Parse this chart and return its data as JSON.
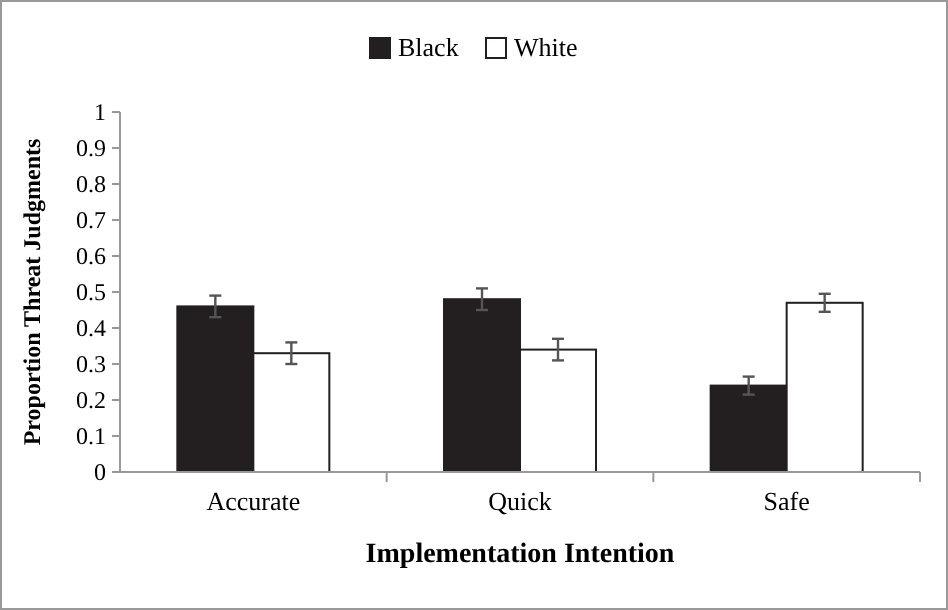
{
  "chart_data": {
    "type": "bar",
    "xlabel": "Implementation Intention",
    "ylabel": "Proportion Threat Judgments",
    "categories": [
      "Accurate",
      "Quick",
      "Safe"
    ],
    "series": [
      {
        "name": "Black",
        "color": "#231f20",
        "values": [
          0.46,
          0.48,
          0.24
        ],
        "errors": [
          0.03,
          0.03,
          0.025
        ]
      },
      {
        "name": "White",
        "color": "#ffffff",
        "values": [
          0.33,
          0.34,
          0.47
        ],
        "errors": [
          0.03,
          0.03,
          0.025
        ]
      }
    ],
    "ylim": [
      0,
      1
    ],
    "yticks": [
      0,
      0.1,
      0.2,
      0.3,
      0.4,
      0.5,
      0.6,
      0.7,
      0.8,
      0.9,
      1
    ],
    "grid": false,
    "legend": "top"
  }
}
